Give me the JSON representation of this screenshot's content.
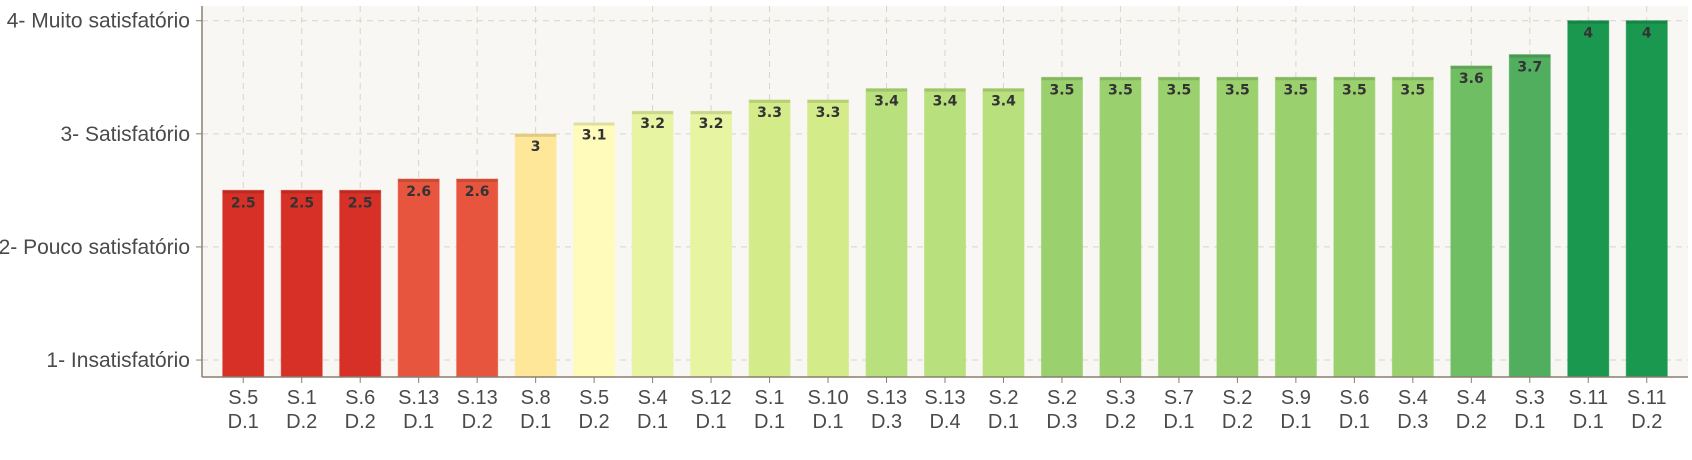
{
  "chart_data": {
    "type": "bar",
    "categories": [
      "S.5 D.1",
      "S.1 D.2",
      "S.6 D.2",
      "S.13 D.1",
      "S.13 D.2",
      "S.8 D.1",
      "S.5 D.2",
      "S.4 D.1",
      "S.12 D.1",
      "S.1 D.1",
      "S.10 D.1",
      "S.13 D.3",
      "S.13 D.4",
      "S.2 D.1",
      "S.2 D.3",
      "S.3 D.2",
      "S.7 D.1",
      "S.2 D.2",
      "S.9 D.1",
      "S.6 D.1",
      "S.4 D.3",
      "S.4 D.2",
      "S.3 D.1",
      "S.11 D.1",
      "S.11 D.2"
    ],
    "values": [
      2.5,
      2.5,
      2.5,
      2.6,
      2.6,
      3,
      3.1,
      3.2,
      3.2,
      3.3,
      3.3,
      3.4,
      3.4,
      3.4,
      3.5,
      3.5,
      3.5,
      3.5,
      3.5,
      3.5,
      3.5,
      3.6,
      3.7,
      4,
      4
    ],
    "data_labels": [
      "2.5",
      "2.5",
      "2.5",
      "2.6",
      "2.6",
      "3",
      "3.1",
      "3.2",
      "3.2",
      "3.3",
      "3.3",
      "3.4",
      "3.4",
      "3.4",
      "3.5",
      "3.5",
      "3.5",
      "3.5",
      "3.5",
      "3.5",
      "3.5",
      "3.6",
      "3.7",
      "4",
      "4"
    ],
    "colors": [
      "#d73027",
      "#d73027",
      "#d73027",
      "#e8553e",
      "#e8553e",
      "#fee799",
      "#fefbbb",
      "#e7f4a2",
      "#e7f4a2",
      "#d4eb8a",
      "#d4eb8a",
      "#b8e07c",
      "#b8e07c",
      "#b8e07c",
      "#9ad06e",
      "#9ad06e",
      "#9ad06e",
      "#9ad06e",
      "#9ad06e",
      "#9ad06e",
      "#9ad06e",
      "#6fbe64",
      "#52ae5f",
      "#1a9850",
      "#1a9850"
    ],
    "y_ticks": [
      {
        "value": 1,
        "label": "1- Insatisfatório"
      },
      {
        "value": 2,
        "label": "2- Pouco satisfatório"
      },
      {
        "value": 3,
        "label": "3- Satisfatório"
      },
      {
        "value": 4,
        "label": "4- Muito satisfatório"
      }
    ],
    "ylim": [
      0.85,
      4.13
    ],
    "title": "",
    "xlabel": "",
    "ylabel": "",
    "grid": true,
    "background": "#f9f7f3"
  }
}
